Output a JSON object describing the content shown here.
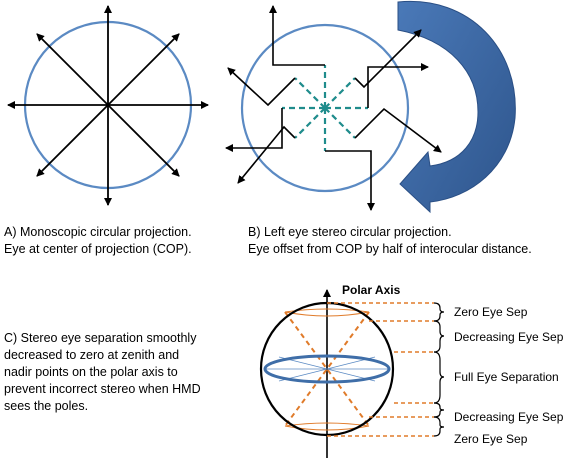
{
  "captions": {
    "a": "A) Monoscopic circular projection.\nEye at center of projection (COP).",
    "b": "B) Left eye stereo circular projection.\nEye offset from COP by half of interocular distance.",
    "c": "C) Stereo eye separation smoothly\ndecreased to zero at zenith and\nnadir points on the polar axis to\nprevent incorrect stereo when HMD\nsees the poles."
  },
  "sphere": {
    "polar_axis_label": "Polar Axis",
    "bands": [
      "Zero Eye Sep",
      "Decreasing Eye Sep",
      "Full Eye Separation",
      "Decreasing Eye Sep",
      "Zero Eye Sep"
    ]
  },
  "colors": {
    "circle": "#5b8ac3",
    "big_arrow": "#3d68a3",
    "dashed_teal": "#1f8c8c",
    "orange_dashed": "#e07b2a",
    "equator": "#3f6ea8"
  }
}
